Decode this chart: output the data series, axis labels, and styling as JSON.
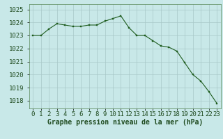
{
  "x": [
    0,
    1,
    2,
    3,
    4,
    5,
    6,
    7,
    8,
    9,
    10,
    11,
    12,
    13,
    14,
    15,
    16,
    17,
    18,
    19,
    20,
    21,
    22,
    23
  ],
  "y": [
    1023.0,
    1023.0,
    1023.5,
    1023.9,
    1023.8,
    1023.7,
    1023.7,
    1023.8,
    1023.8,
    1024.1,
    1024.3,
    1024.5,
    1023.6,
    1023.0,
    1023.0,
    1022.6,
    1022.2,
    1022.1,
    1021.8,
    1020.9,
    1020.0,
    1019.5,
    1018.7,
    1017.8
  ],
  "line_color": "#1e5c1e",
  "marker_color": "#1e5c1e",
  "bg_color": "#c8e8e8",
  "grid_color": "#a8c8c8",
  "ylabel_ticks": [
    1018,
    1019,
    1020,
    1021,
    1022,
    1023,
    1024,
    1025
  ],
  "ylim": [
    1017.4,
    1025.4
  ],
  "xlim": [
    -0.5,
    23.5
  ],
  "xlabel": "Graphe pression niveau de la mer (hPa)",
  "tick_label_color": "#1e4a1e",
  "xlabel_color": "#1e4a1e",
  "xlabel_fontsize": 7.0,
  "tick_fontsize": 6.5
}
